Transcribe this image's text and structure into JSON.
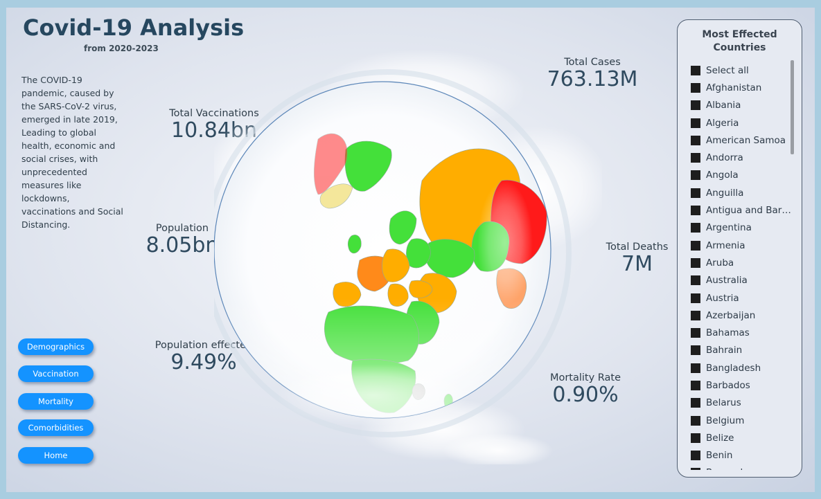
{
  "header": {
    "title": "Covid-19 Analysis",
    "subtitle": "from 2020-2023"
  },
  "description": "The COVID-19 pandemic, caused by the SARS-CoV-2 virus, emerged in late 2019, Leading to global health, economic and social crises, with unprecedented measures like lockdowns, vaccinations and Social Distancing.",
  "kpis": {
    "total_vaccinations": {
      "label": "Total Vaccinations",
      "value": "10.84bn"
    },
    "population": {
      "label": "Population",
      "value": "8.05bn"
    },
    "population_effected": {
      "label": "Population effected",
      "value": "9.49%"
    },
    "total_cases": {
      "label": "Total Cases",
      "value": "763.13M"
    },
    "total_deaths": {
      "label": "Total Deaths",
      "value": "7M"
    },
    "mortality_rate": {
      "label": "Mortality Rate",
      "value": "0.90%"
    }
  },
  "nav": {
    "demographics": "Demographics",
    "vaccination": "Vaccination",
    "mortality": "Mortality",
    "comorbidities": "Comorbidities",
    "home": "Home"
  },
  "map": {
    "colors": {
      "high": "#ff1a1a",
      "upper": "#ff8a1a",
      "mid": "#ffad00",
      "low": "#44e03a",
      "none": "#bfbfbf"
    }
  },
  "slicer": {
    "title": "Most Effected Countries",
    "items": [
      "Select all",
      "Afghanistan",
      "Albania",
      "Algeria",
      "American Samoa",
      "Andorra",
      "Angola",
      "Anguilla",
      "Antigua and Barb…",
      "Argentina",
      "Armenia",
      "Aruba",
      "Australia",
      "Austria",
      "Azerbaijan",
      "Bahamas",
      "Bahrain",
      "Bangladesh",
      "Barbados",
      "Belarus",
      "Belgium",
      "Belize",
      "Benin",
      "Bermuda"
    ]
  }
}
